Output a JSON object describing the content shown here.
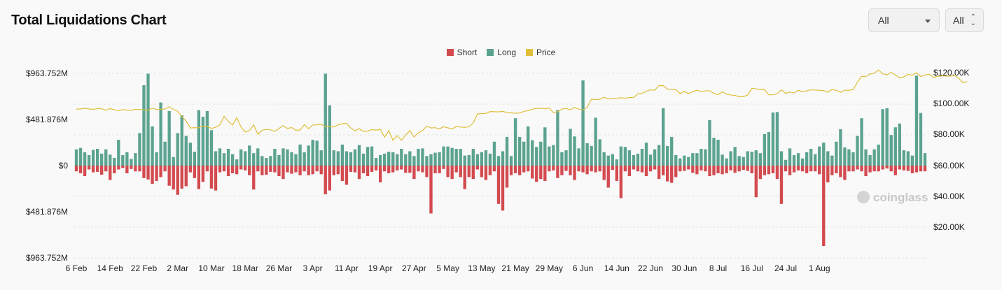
{
  "header": {
    "title": "Total Liquidations Chart"
  },
  "controls": {
    "exchange_select": "All",
    "range_select": "All"
  },
  "legend": [
    {
      "label": "Short",
      "color": "#d34a4f"
    },
    {
      "label": "Long",
      "color": "#5ba390"
    },
    {
      "label": "Price",
      "color": "#e0be3a"
    }
  ],
  "watermark": "coinglass",
  "chart_data": {
    "type": "bar",
    "title": "Total Liquidations Chart",
    "start_date": "2025-02-06",
    "end_date": "2025-08-04",
    "y_left": {
      "ticks": [
        "$963.752M",
        "$481.876M",
        "$0",
        "$481.876M",
        "$963.752M"
      ],
      "max": 963.752,
      "unit": "M USD"
    },
    "y_right": {
      "ticks": [
        "$120.00K",
        "$100.00K",
        "$80.00K",
        "$60.00K",
        "$40.00K",
        "$20.00K"
      ],
      "range": [
        0,
        130000
      ]
    },
    "x_ticks": [
      "6 Feb",
      "14 Feb",
      "22 Feb",
      "2 Mar",
      "10 Mar",
      "18 Mar",
      "26 Mar",
      "3 Apr",
      "11 Apr",
      "19 Apr",
      "27 Apr",
      "5 May",
      "13 May",
      "21 May",
      "29 May",
      "6 Jun",
      "14 Jun",
      "22 Jun",
      "30 Jun",
      "8 Jul",
      "16 Jul",
      "24 Jul",
      "1 Aug"
    ],
    "grid": true,
    "legend_position": "top-center",
    "series": [
      {
        "name": "Long",
        "color": "#5ba390",
        "values": [
          170,
          185,
          140,
          110,
          165,
          175,
          125,
          170,
          115,
          80,
          270,
          110,
          140,
          70,
          130,
          340,
          840,
          960,
          410,
          140,
          660,
          250,
          570,
          90,
          340,
          525,
          310,
          240,
          145,
          580,
          510,
          570,
          370,
          150,
          180,
          130,
          175,
          120,
          65,
          170,
          150,
          210,
          130,
          180,
          100,
          80,
          100,
          175,
          110,
          180,
          170,
          140,
          120,
          220,
          140,
          210,
          270,
          260,
          160,
          960,
          630,
          160,
          150,
          220,
          150,
          140,
          170,
          215,
          125,
          195,
          200,
          80,
          110,
          125,
          145,
          140,
          120,
          175,
          120,
          150,
          100,
          175,
          180,
          100,
          120,
          135,
          140,
          200,
          200,
          185,
          175,
          175,
          105,
          110,
          175,
          120,
          140,
          160,
          125,
          250,
          100,
          150,
          300,
          100,
          495,
          300,
          250,
          410,
          265,
          195,
          250,
          400,
          200,
          215,
          580,
          140,
          160,
          385,
          305,
          180,
          890,
          235,
          205,
          500,
          275,
          140,
          105,
          120,
          65,
          200,
          195,
          160,
          110,
          125,
          175,
          240,
          115,
          170,
          215,
          600,
          205,
          300,
          110,
          75,
          105,
          90,
          130,
          130,
          175,
          170,
          475,
          290,
          270,
          115,
          75,
          150,
          195,
          100,
          90,
          150,
          145,
          160,
          130,
          330,
          350,
          555,
          560,
          150,
          60,
          180,
          110,
          130,
          75,
          140,
          175,
          120,
          200,
          240,
          150,
          105,
          250,
          380,
          190,
          170,
          140,
          310,
          495,
          170,
          110,
          170,
          220,
          590,
          600,
          320,
          400,
          440,
          160,
          150,
          105,
          940,
          550,
          130
        ]
      },
      {
        "name": "Short",
        "color": "#d34a4f",
        "values": [
          60,
          80,
          110,
          40,
          70,
          65,
          95,
          60,
          150,
          80,
          40,
          25,
          80,
          35,
          60,
          60,
          130,
          145,
          190,
          160,
          120,
          60,
          210,
          250,
          305,
          240,
          215,
          70,
          130,
          245,
          170,
          60,
          240,
          260,
          70,
          60,
          110,
          80,
          90,
          40,
          50,
          100,
          250,
          60,
          100,
          95,
          65,
          70,
          110,
          140,
          70,
          85,
          70,
          100,
          60,
          100,
          90,
          60,
          90,
          300,
          260,
          100,
          90,
          160,
          200,
          65,
          70,
          140,
          80,
          110,
          65,
          50,
          175,
          60,
          80,
          70,
          50,
          40,
          75,
          75,
          140,
          60,
          70,
          120,
          500,
          80,
          80,
          35,
          120,
          140,
          70,
          120,
          245,
          120,
          140,
          40,
          120,
          150,
          100,
          60,
          400,
          470,
          230,
          100,
          80,
          100,
          70,
          60,
          135,
          170,
          140,
          160,
          60,
          50,
          130,
          100,
          55,
          100,
          150,
          60,
          70,
          90,
          60,
          70,
          60,
          150,
          230,
          45,
          160,
          340,
          60,
          110,
          40,
          60,
          70,
          110,
          60,
          40,
          140,
          100,
          165,
          180,
          120,
          60,
          55,
          40,
          75,
          90,
          50,
          60,
          110,
          100,
          80,
          90,
          80,
          50,
          75,
          60,
          45,
          55,
          80,
          330,
          140,
          100,
          90,
          80,
          140,
          400,
          60,
          100,
          70,
          50,
          60,
          80,
          60,
          60,
          90,
          840,
          175,
          100,
          80,
          120,
          150,
          60,
          60,
          40,
          60,
          110,
          70,
          60,
          60,
          40,
          30,
          60,
          100,
          40,
          50,
          55,
          80,
          70,
          60,
          60
        ]
      },
      {
        "name": "Price",
        "color": "#e0be3a",
        "values": [
          96.5,
          96.6,
          97.0,
          96.6,
          96.3,
          96.8,
          96.7,
          95.8,
          96.8,
          96.1,
          95.4,
          96.2,
          95.8,
          95.7,
          96.4,
          96.2,
          96.0,
          95.8,
          97.2,
          96.1,
          96.4,
          96.5,
          98.0,
          96.3,
          95.1,
          91.6,
          88.8,
          84.3,
          84.5,
          84.4,
          85.6,
          85.2,
          84.0,
          84.8,
          86.3,
          91.8,
          88.6,
          86.2,
          91.0,
          85.0,
          81.7,
          82.5,
          86.3,
          80.2,
          82.8,
          83.4,
          83.1,
          82.1,
          84.0,
          85.8,
          84.0,
          84.6,
          82.8,
          83.0,
          86.4,
          83.8,
          86.2,
          86.3,
          86.6,
          85.2,
          85.2,
          84.9,
          86.4,
          87.0,
          87.3,
          84.3,
          82.5,
          83.8,
          82.1,
          82.2,
          83.3,
          82.9,
          83.4,
          78.4,
          82.5,
          76.3,
          79.4,
          76.3,
          79.8,
          82.6,
          78.5,
          81.2,
          82.6,
          85.5,
          84.3,
          84.5,
          83.7,
          85.1,
          84.4,
          83.7,
          85.3,
          84.9,
          84.7,
          85.1,
          87.5,
          93.4,
          93.6,
          93.7,
          94.9,
          94.8,
          94.7,
          95.0,
          94.3,
          94.0,
          93.8,
          94.0,
          95.0,
          95.5,
          96.4,
          97.0,
          96.9,
          96.7,
          97.2,
          94.2,
          94.8,
          96.5,
          96.9,
          96.0,
          97.6,
          96.5,
          95.9,
          97.5,
          102.9,
          102.6,
          102.8,
          104.2,
          103.0,
          103.3,
          103.5,
          103.8,
          103.5,
          104.0,
          103.9,
          106.5,
          106.6,
          108.0,
          108.9,
          108.7,
          111.7,
          111.6,
          109.5,
          109.1,
          109.0,
          106.5,
          107.9,
          106.5,
          107.7,
          108.7,
          107.8,
          108.3,
          108.3,
          106.6,
          105.8,
          107.6,
          106.1,
          105.6,
          105.3,
          104.5,
          104.5,
          105.6,
          110.0,
          109.6,
          109.1,
          109.0,
          105.7,
          105.7,
          106.5,
          108.9,
          106.6,
          107.5,
          106.9,
          108.6,
          107.7,
          108.3,
          108.9,
          108.8,
          108.6,
          108.4,
          107.4,
          109.2,
          108.6,
          107.3,
          108.7,
          108.6,
          109.1,
          113.8,
          117.6,
          117.5,
          119.1,
          119.7,
          121.7,
          119.3,
          118.6,
          120.2,
          118.5,
          116.8,
          117.3,
          118.9,
          118.3,
          120.0,
          117.5,
          118.5,
          119.0,
          116.9,
          117.6,
          117.9,
          117.8,
          117.8,
          118.2,
          116.4,
          113.5,
          114.2
        ]
      }
    ]
  }
}
